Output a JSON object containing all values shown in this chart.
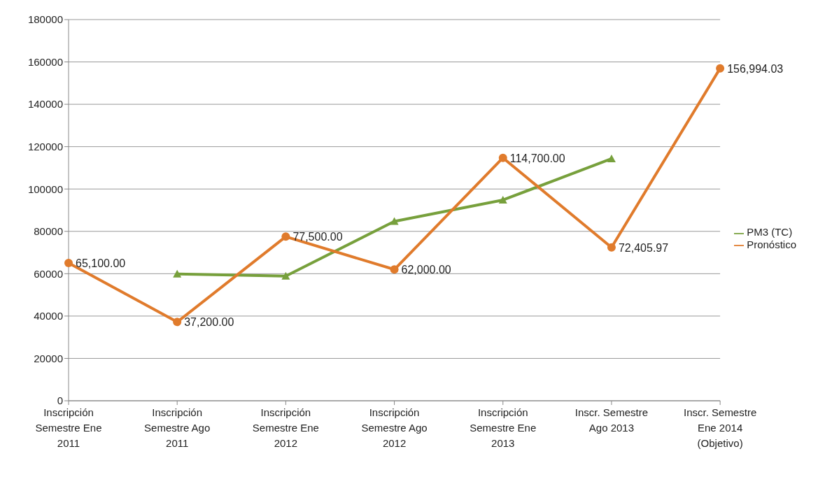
{
  "chart_data": {
    "type": "line",
    "categories": [
      "Inscripción Semestre Ene 2011",
      "Inscripción Semestre Ago 2011",
      "Inscripción Semestre Ene 2012",
      "Inscripción Semestre Ago 2012",
      "Inscripción Semestre Ene 2013",
      "Inscr. Semestre Ago 2013",
      "Inscr. Semestre Ene 2014 (Objetivo)"
    ],
    "series": [
      {
        "name": "PM3 (TC)",
        "color": "#77a03c",
        "marker": "triangle",
        "values": [
          null,
          59900,
          58900,
          84700,
          94800,
          114300,
          null
        ]
      },
      {
        "name": "Pronóstico",
        "color": "#e07b2c",
        "marker": "circle",
        "values": [
          65100,
          37200,
          77500,
          62000,
          114700,
          72405.97,
          156994.03
        ],
        "value_labels": [
          "65,100.00",
          "37,200.00",
          "77,500.00",
          "62,000.00",
          "114,700.00",
          "72,405.97",
          "156,994.03"
        ]
      }
    ],
    "ylim": [
      0,
      180000
    ],
    "yticks": [
      0,
      20000,
      40000,
      60000,
      80000,
      100000,
      120000,
      140000,
      160000,
      180000
    ],
    "grid": "y",
    "legend": "right",
    "line_style": "solid"
  }
}
